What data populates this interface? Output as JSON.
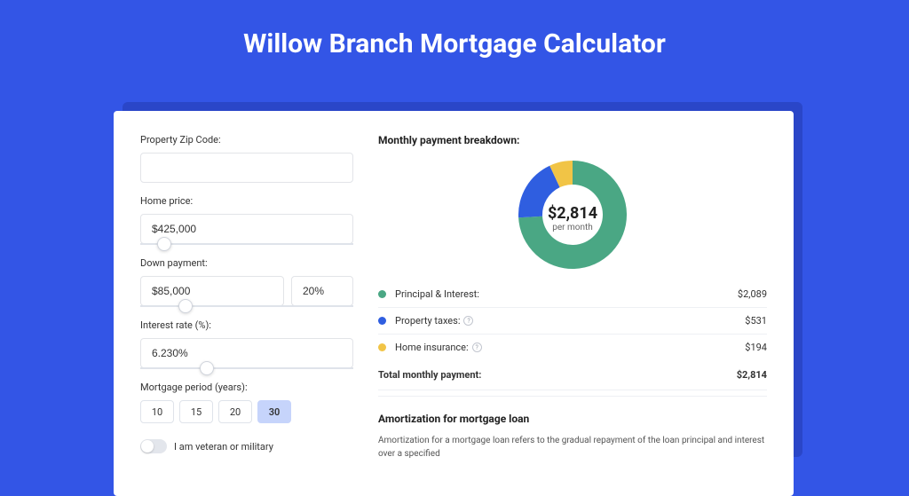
{
  "page": {
    "title": "Willow Branch Mortgage Calculator",
    "background_color": "#3355e6",
    "shadow_color": "#2a46c8"
  },
  "form": {
    "zip": {
      "label": "Property Zip Code:",
      "value": ""
    },
    "home_price": {
      "label": "Home price:",
      "value": "$425,000",
      "slider_pos_pct": 8
    },
    "down_payment": {
      "label": "Down payment:",
      "value": "$85,000",
      "pct_value": "20%",
      "slider_pos_pct": 18
    },
    "interest_rate": {
      "label": "Interest rate (%):",
      "value": "6.230%",
      "slider_pos_pct": 28
    },
    "period": {
      "label": "Mortgage period (years):",
      "options": [
        "10",
        "15",
        "20",
        "30"
      ],
      "selected": "30"
    },
    "veteran": {
      "label": "I am veteran or military",
      "checked": false
    }
  },
  "breakdown": {
    "title": "Monthly payment breakdown:",
    "donut": {
      "amount": "$2,814",
      "sub": "per month",
      "slices": [
        {
          "label": "Principal & Interest",
          "value": 2089,
          "color": "#4aa784",
          "start": 0,
          "end": 267
        },
        {
          "label": "Property taxes",
          "value": 531,
          "color": "#2f5ee0",
          "start": 267,
          "end": 335
        },
        {
          "label": "Home insurance",
          "value": 194,
          "color": "#f1c446",
          "start": 335,
          "end": 360
        }
      ],
      "inner_radius": 34,
      "outer_radius": 61,
      "background": "#ffffff"
    },
    "rows": [
      {
        "dot_color": "#4aa784",
        "label": "Principal & Interest:",
        "info": false,
        "value": "$2,089"
      },
      {
        "dot_color": "#2f5ee0",
        "label": "Property taxes:",
        "info": true,
        "value": "$531"
      },
      {
        "dot_color": "#f1c446",
        "label": "Home insurance:",
        "info": true,
        "value": "$194"
      }
    ],
    "total": {
      "label": "Total monthly payment:",
      "value": "$2,814"
    }
  },
  "amortization": {
    "title": "Amortization for mortgage loan",
    "text": "Amortization for a mortgage loan refers to the gradual repayment of the loan principal and interest over a specified"
  }
}
